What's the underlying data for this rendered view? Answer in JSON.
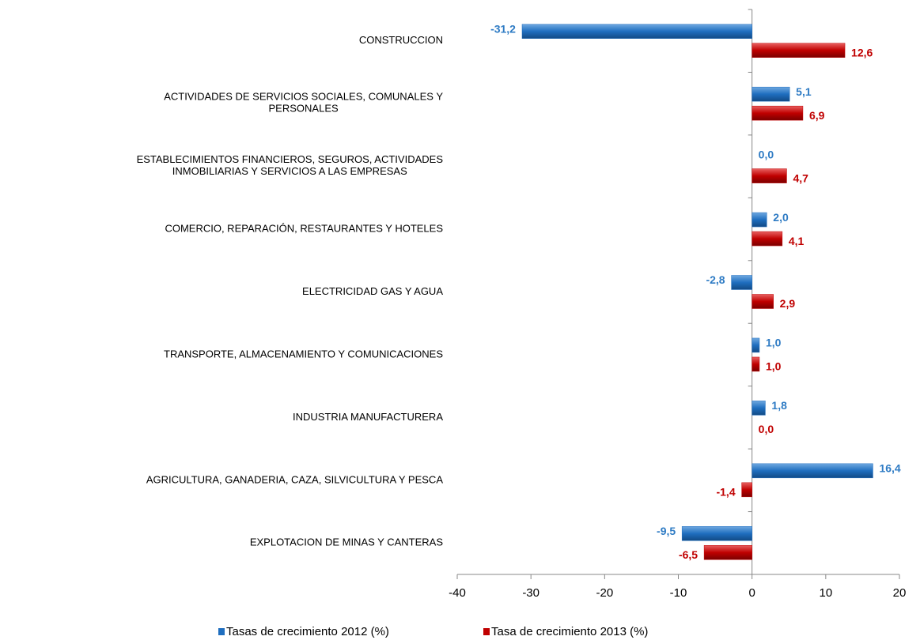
{
  "chart_data": {
    "type": "bar",
    "orientation": "horizontal",
    "categories": [
      "CONSTRUCCION",
      "ACTIVIDADES DE SERVICIOS SOCIALES, COMUNALES Y\nPERSONALES",
      "ESTABLECIMIENTOS FINANCIEROS, SEGUROS, ACTIVIDADES\nINMOBILIARIAS Y SERVICIOS A LAS EMPRESAS",
      "COMERCIO, REPARACIÓN, RESTAURANTES Y HOTELES",
      "ELECTRICIDAD GAS Y AGUA",
      "TRANSPORTE, ALMACENAMIENTO Y COMUNICACIONES",
      "INDUSTRIA MANUFACTURERA",
      "AGRICULTURA, GANADERIA, CAZA, SILVICULTURA Y PESCA",
      "EXPLOTACION DE MINAS Y CANTERAS"
    ],
    "series": [
      {
        "name": "Tasas de crecimiento 2012 (%)",
        "color": "#1f6ebf",
        "label_color": "#2e7bc4",
        "values": [
          -31.2,
          5.1,
          0.0,
          2.0,
          -2.8,
          1.0,
          1.8,
          16.4,
          -9.5
        ],
        "value_labels": [
          "-31,2",
          "5,1",
          "0,0",
          "2,0",
          "-2,8",
          "1,0",
          "1,8",
          "16,4",
          "-9,5"
        ]
      },
      {
        "name": "Tasa de crecimiento 2013 (%)",
        "color": "#c00000",
        "label_color": "#c00000",
        "values": [
          12.6,
          6.9,
          4.7,
          4.1,
          2.9,
          1.0,
          0.0,
          -1.4,
          -6.5
        ],
        "value_labels": [
          "12,6",
          "6,9",
          "4,7",
          "4,1",
          "2,9",
          "1,0",
          "0,0",
          "-1,4",
          "-6,5"
        ]
      }
    ],
    "xlim": [
      -40,
      20
    ],
    "xticks": [
      -40,
      -30,
      -20,
      -10,
      0,
      10,
      20
    ],
    "legend": "bottom"
  }
}
